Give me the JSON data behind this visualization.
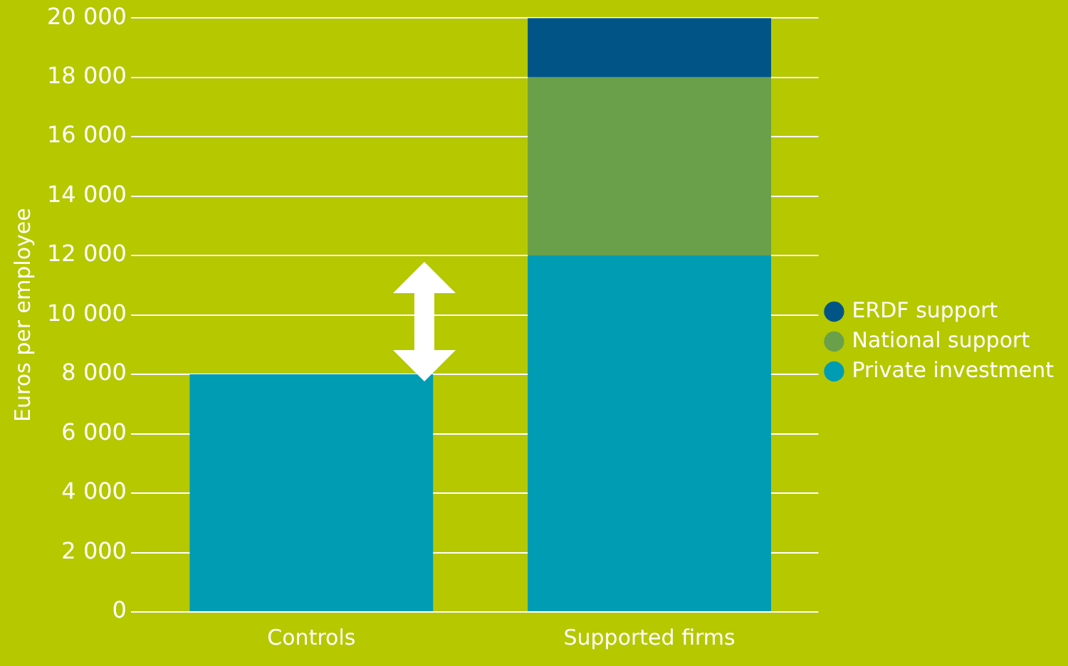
{
  "chart_data": {
    "type": "bar",
    "stacked": true,
    "ylabel": "Euros per employee",
    "categories": [
      "Controls",
      "Supported firms"
    ],
    "series": [
      {
        "name": "Private investment",
        "color": "#009cb4",
        "values": [
          8000,
          12000
        ]
      },
      {
        "name": "National support",
        "color": "#6aa04a",
        "values": [
          null,
          6000
        ]
      },
      {
        "name": "ERDF support",
        "color": "#005587",
        "values": [
          null,
          2000
        ]
      }
    ],
    "ylim": [
      0,
      20000
    ],
    "yticks": [
      0,
      {
        "value": 2000,
        "label": "2 000"
      },
      {
        "value": 4000,
        "label": "4 000"
      },
      {
        "value": 6000,
        "label": "6 000"
      },
      {
        "value": 8000,
        "label": "8 000"
      },
      {
        "value": 10000,
        "label": "10 000"
      },
      {
        "value": 12000,
        "label": "12 000"
      },
      {
        "value": 14000,
        "label": "14 000"
      },
      {
        "value": 16000,
        "label": "16 000"
      },
      {
        "value": 18000,
        "label": "18 000"
      },
      {
        "value": 20000,
        "label": "20 000"
      }
    ],
    "grid": "y",
    "legend": "right"
  }
}
